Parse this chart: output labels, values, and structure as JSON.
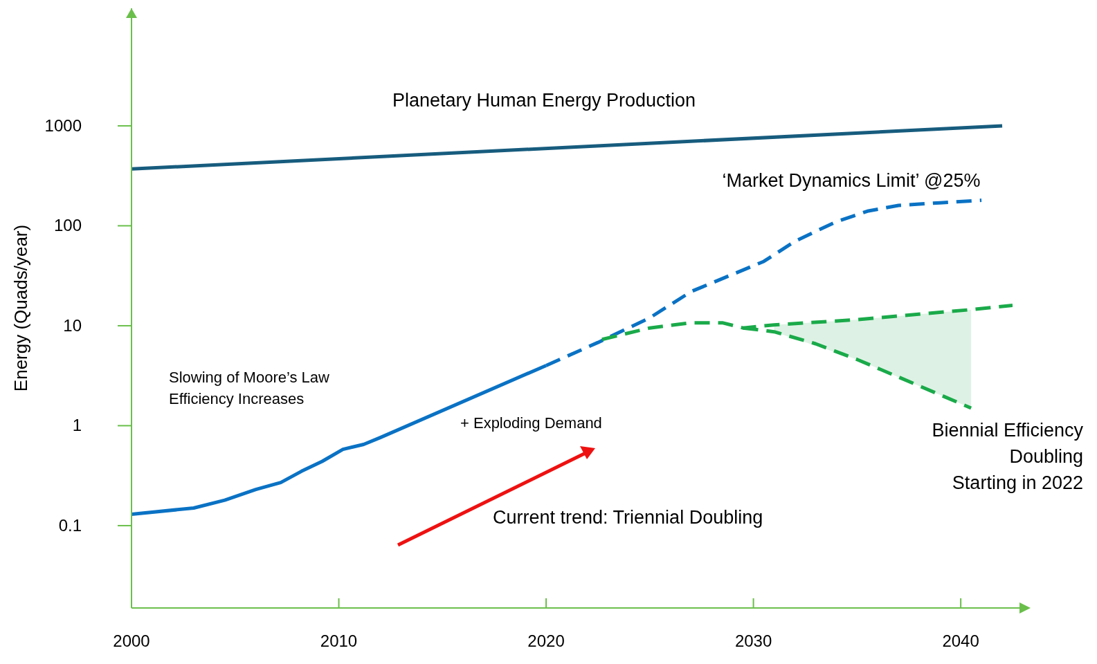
{
  "chart_data": {
    "type": "line",
    "ylabel": "Energy (Quads/year)",
    "log": "y",
    "xlim": [
      2000,
      2042.5
    ],
    "xticks": [
      2000,
      2010,
      2020,
      2030,
      2040
    ],
    "ylim": [
      0.015,
      15000
    ],
    "yticks": [
      0.1,
      1,
      10,
      100,
      1000
    ],
    "grid": false,
    "marker": "none",
    "series": [
      {
        "color": "#175c7e",
        "line_style": "solid",
        "x": [
          2000,
          2042
        ],
        "values": [
          370,
          1000
        ]
      },
      {
        "color": "#0a72c4",
        "line_style": "solid",
        "x": [
          2000,
          2003,
          2004.5,
          2006,
          2007.2,
          2008.2,
          2009.2,
          2010.2,
          2011.2,
          2012,
          2020
        ],
        "values": [
          0.13,
          0.15,
          0.18,
          0.23,
          0.27,
          0.35,
          0.44,
          0.58,
          0.65,
          0.76,
          4
        ]
      },
      {
        "color": "#0a72c4",
        "line_style": "dashed",
        "x": [
          2020,
          2022.5,
          2025,
          2027,
          2030.5,
          2032,
          2034,
          2035.5,
          2037,
          2039,
          2041
        ],
        "values": [
          4,
          6.8,
          12,
          22,
          44,
          70,
          110,
          140,
          160,
          170,
          180
        ]
      },
      {
        "color": "#1aaa4a",
        "line_style": "dashed",
        "x": [
          2022.7,
          2025,
          2027,
          2028.5,
          2029.5,
          2031,
          2035,
          2040.5,
          2042.5
        ],
        "values": [
          7.3,
          9.5,
          10.7,
          10.7,
          9.5,
          10.2,
          11.5,
          14.5,
          16
        ],
        "lower": [
          null,
          null,
          null,
          null,
          null,
          8.7,
          4.6,
          1.5,
          null
        ],
        "upper": [
          null,
          null,
          null,
          null,
          null,
          10.2,
          11.5,
          14.5,
          null
        ]
      },
      {
        "color": "#1aaa4a",
        "line_style": "dashed",
        "x": [
          2029.5,
          2031,
          2033,
          2035,
          2038,
          2040.5
        ],
        "values": [
          9.5,
          8.7,
          6.6,
          4.6,
          2.5,
          1.5
        ]
      }
    ],
    "annotations": [
      "Planetary Human Energy Production",
      "‘Market Dynamics Limit’ @25%",
      "Slowing of Moore’s Law\nEfficiency Increases",
      "+ Exploding Demand",
      "Biennial Efficiency\nDoubling\nStarting in 2022",
      "Current trend: Triennial Doubling"
    ]
  }
}
